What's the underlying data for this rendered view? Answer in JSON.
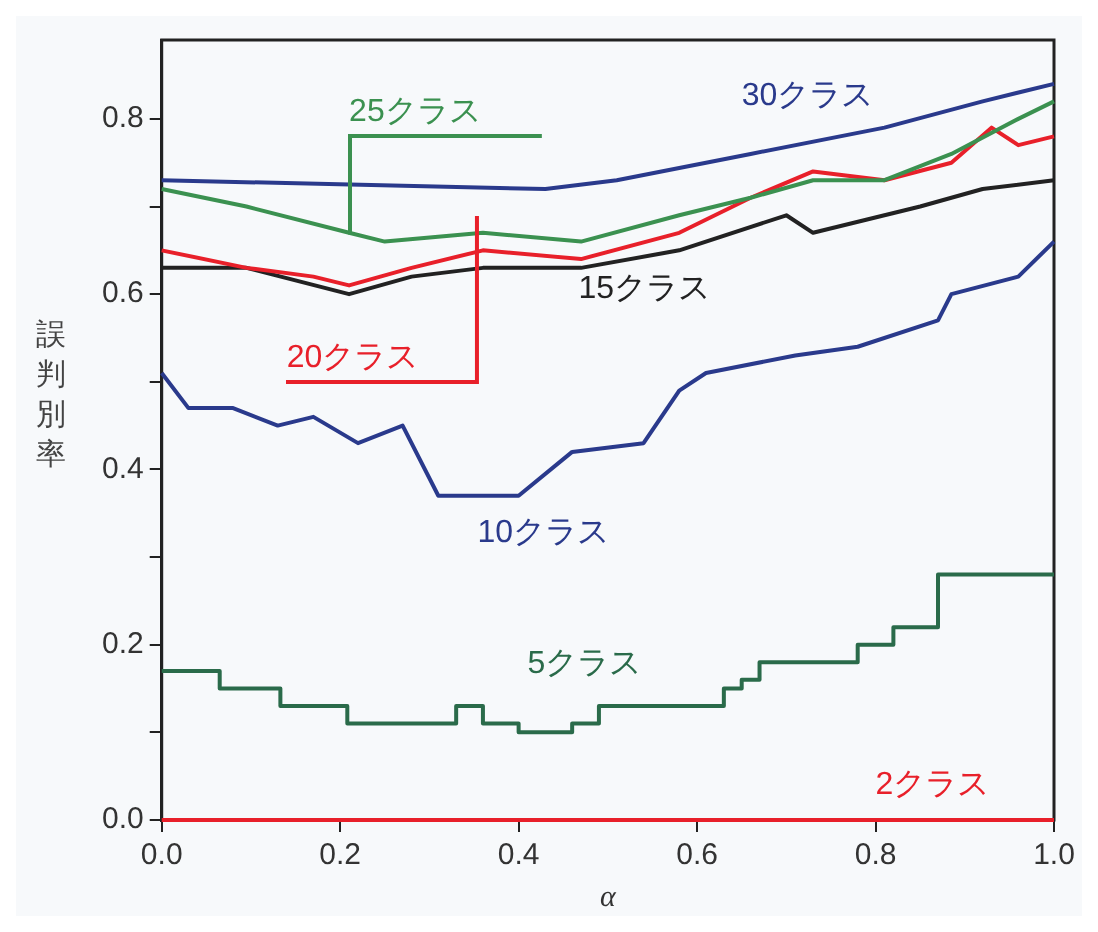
{
  "chart_data": {
    "type": "line",
    "xlabel": "α",
    "ylabel": "誤判別率",
    "xlim": [
      0,
      1
    ],
    "xticks": [
      {
        "value": 0,
        "label": "0.0"
      },
      {
        "value": 0.2,
        "label": "0.2"
      },
      {
        "value": 0.4,
        "label": "0.4"
      },
      {
        "value": 0.6,
        "label": "0.6"
      },
      {
        "value": 0.8,
        "label": "0.8"
      },
      {
        "value": 1,
        "label": "1.0"
      }
    ],
    "ylim": [
      0,
      0.89
    ],
    "yticks": [
      {
        "value": 0,
        "label": "0.0"
      },
      {
        "value": 0.1,
        "label": null
      },
      {
        "value": 0.2,
        "label": "0.2"
      },
      {
        "value": 0.3,
        "label": null
      },
      {
        "value": 0.4,
        "label": "0.4"
      },
      {
        "value": 0.5,
        "label": null
      },
      {
        "value": 0.6,
        "label": "0.6"
      },
      {
        "value": 0.7,
        "label": null
      },
      {
        "value": 0.8,
        "label": "0.8"
      }
    ],
    "grid": false,
    "legend": false,
    "marker": "none",
    "line_style": "solid",
    "series": [
      {
        "name": "30クラス",
        "color": "#2a3a8c",
        "x": [
          0,
          0.43,
          0.51,
          0.66,
          0.81,
          0.92,
          1.0
        ],
        "values": [
          0.73,
          0.72,
          0.73,
          0.76,
          0.79,
          0.82,
          0.84
        ]
      },
      {
        "name": "25クラス",
        "color": "#3b9150",
        "x": [
          0,
          0.095,
          0.21,
          0.25,
          0.36,
          0.47,
          0.58,
          0.66,
          0.73,
          0.81,
          0.885,
          0.96,
          1.0
        ],
        "values": [
          0.72,
          0.7,
          0.67,
          0.66,
          0.67,
          0.66,
          0.69,
          0.71,
          0.73,
          0.73,
          0.76,
          0.8,
          0.82
        ]
      },
      {
        "name": "20クラス",
        "color": "#e8202a",
        "x": [
          0,
          0.095,
          0.17,
          0.21,
          0.28,
          0.36,
          0.47,
          0.58,
          0.66,
          0.73,
          0.81,
          0.885,
          0.93,
          0.96,
          1.0
        ],
        "values": [
          0.65,
          0.63,
          0.62,
          0.61,
          0.63,
          0.65,
          0.64,
          0.67,
          0.71,
          0.74,
          0.73,
          0.75,
          0.79,
          0.77,
          0.78
        ]
      },
      {
        "name": "15クラス",
        "color": "#222222",
        "x": [
          0,
          0.095,
          0.21,
          0.28,
          0.36,
          0.47,
          0.58,
          0.7,
          0.73,
          0.85,
          0.92,
          1.0
        ],
        "values": [
          0.63,
          0.63,
          0.6,
          0.62,
          0.63,
          0.63,
          0.65,
          0.69,
          0.67,
          0.7,
          0.72,
          0.73
        ]
      },
      {
        "name": "10クラス",
        "color": "#2a3a8c",
        "x": [
          0,
          0.03,
          0.08,
          0.13,
          0.17,
          0.22,
          0.27,
          0.31,
          0.4,
          0.46,
          0.54,
          0.58,
          0.61,
          0.71,
          0.78,
          0.87,
          0.885,
          0.96,
          1.0
        ],
        "values": [
          0.51,
          0.47,
          0.47,
          0.45,
          0.46,
          0.43,
          0.45,
          0.37,
          0.37,
          0.42,
          0.43,
          0.49,
          0.51,
          0.53,
          0.54,
          0.57,
          0.6,
          0.62,
          0.66
        ]
      },
      {
        "name": "5クラス",
        "type": "step",
        "color": "#2a6b4a",
        "x": [
          0,
          0.065,
          0.133,
          0.208,
          0.33,
          0.36,
          0.4,
          0.46,
          0.49,
          0.63,
          0.65,
          0.67,
          0.78,
          0.82,
          0.87,
          1.0
        ],
        "values": [
          0.17,
          0.15,
          0.13,
          0.11,
          0.13,
          0.11,
          0.1,
          0.11,
          0.13,
          0.15,
          0.16,
          0.18,
          0.2,
          0.22,
          0.28,
          0.28
        ]
      },
      {
        "name": "2クラス",
        "color": "#e8202a",
        "x": [
          0,
          1.0
        ],
        "values": [
          0,
          0
        ]
      }
    ]
  }
}
